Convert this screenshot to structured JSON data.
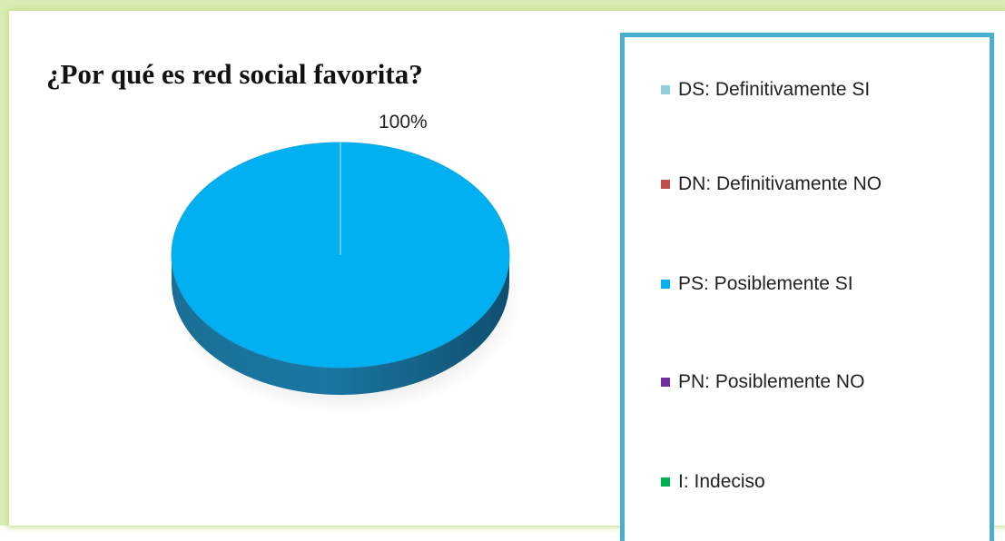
{
  "chart_data": {
    "type": "pie",
    "title": "¿Por qué es  red social favorita?",
    "categories": [
      "DS: Definitivamente SI",
      "DN: Definitivamente NO",
      "PS: Posiblemente SI",
      "PN: Posiblemente NO",
      "I:  Indeciso"
    ],
    "values": [
      0,
      0,
      100,
      0,
      0
    ],
    "colors": [
      "#92cddc",
      "#c0504d",
      "#00b0f0",
      "#7030a0",
      "#00b050"
    ],
    "data_labels": [
      "100%"
    ],
    "legend_position": "right",
    "style": "3d"
  }
}
